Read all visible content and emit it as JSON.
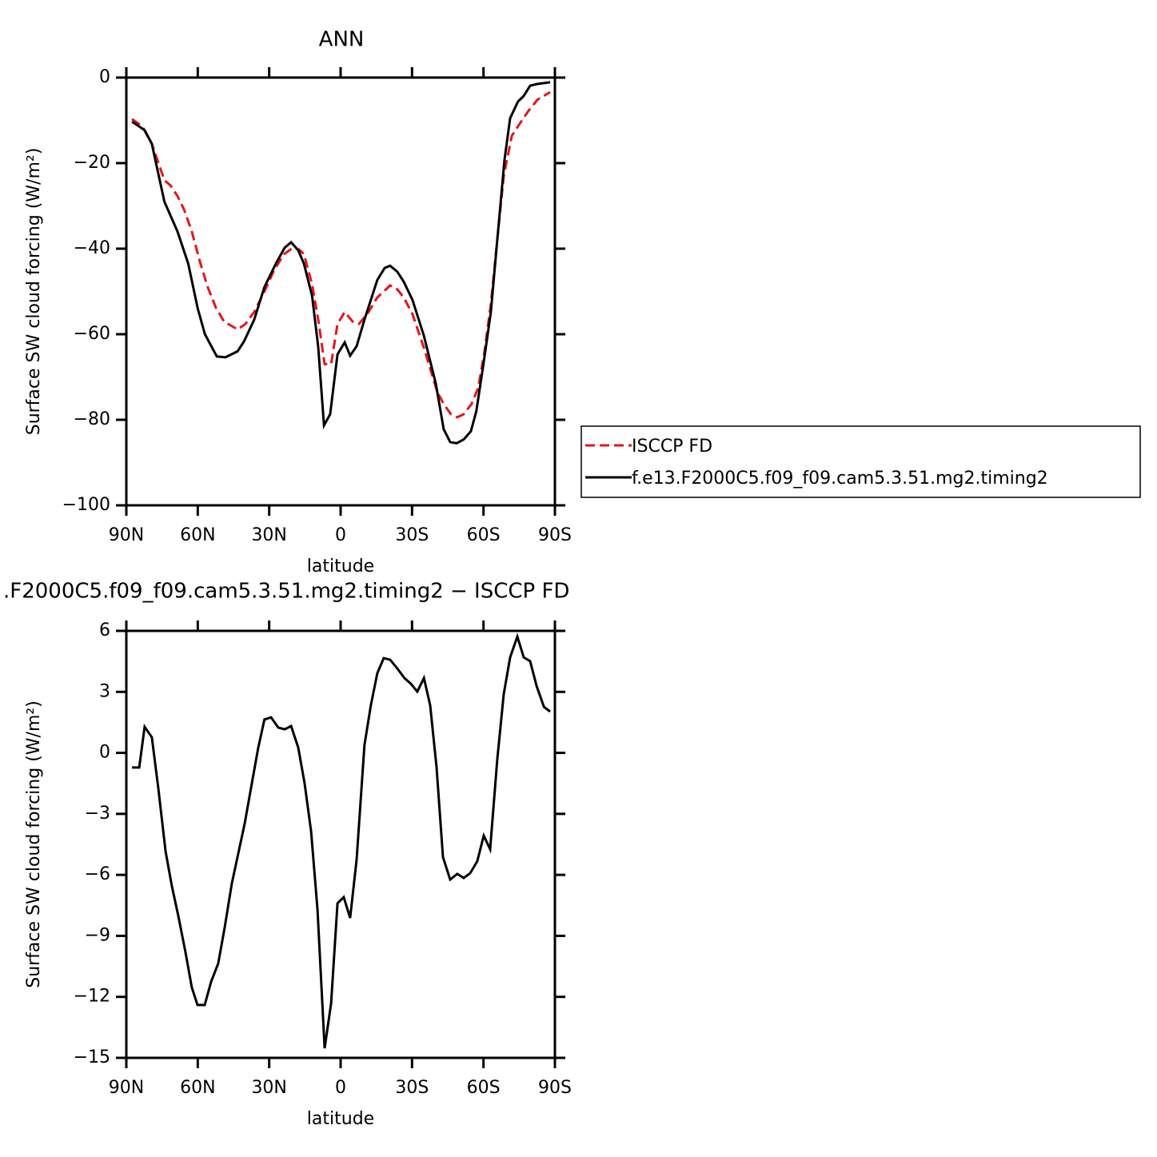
{
  "chart_data": [
    {
      "type": "line",
      "title": "ANN",
      "xlabel": "latitude",
      "ylabel": "Surface SW cloud forcing (W/m²)",
      "xlim": [
        90,
        -90
      ],
      "xticks": [
        {
          "value": 90,
          "label": "90N"
        },
        {
          "value": 60,
          "label": "60N"
        },
        {
          "value": 30,
          "label": "30N"
        },
        0,
        {
          "value": -30,
          "label": "30S"
        },
        {
          "value": -60,
          "label": "60S"
        },
        {
          "value": -90,
          "label": "90S"
        }
      ],
      "ylim": [
        -100,
        0
      ],
      "yticks": [
        {
          "value": -100,
          "label": "−100"
        },
        {
          "value": -80,
          "label": "−80"
        },
        {
          "value": -60,
          "label": "−60"
        },
        {
          "value": -40,
          "label": "−40"
        },
        {
          "value": -20,
          "label": "−20"
        },
        0
      ],
      "series": [
        {
          "name": "ISCCP FD",
          "color": "#e8141a",
          "dashed": true,
          "x": [
            87.6,
            83.3,
            79.3,
            74,
            71.5,
            68.5,
            65.8,
            62.5,
            59,
            55.8,
            52.4,
            49,
            43.3,
            40,
            36.3,
            32,
            27.9,
            23.8,
            20.1,
            17.4,
            15.4,
            12,
            9.4,
            6.7,
            4,
            1.3,
            -1.7,
            -5,
            -7.7,
            -11.4,
            -15.4,
            -20.8,
            -23.8,
            -26.5,
            -30.2,
            -35,
            -40.6,
            -43.3,
            -46.3,
            -49,
            -51.7,
            -55,
            -57.8,
            -60.4,
            -63.1,
            -65.8,
            -68.5,
            -71.9,
            -75.2,
            -78.6,
            -82.6,
            -88
          ],
          "values": [
            -9.7,
            -11.4,
            -15.5,
            -24,
            -25.2,
            -27.7,
            -30.8,
            -36,
            -43.2,
            -49,
            -53.8,
            -57,
            -58.9,
            -57.6,
            -54.8,
            -50,
            -45,
            -41.3,
            -39.8,
            -40.2,
            -41.3,
            -48.3,
            -56.6,
            -67,
            -67,
            -57.6,
            -54.8,
            -57,
            -57.6,
            -55.1,
            -51.4,
            -48.6,
            -49.5,
            -51.4,
            -55.3,
            -63.2,
            -73.5,
            -76.3,
            -78.7,
            -79.4,
            -78.7,
            -76.3,
            -72.5,
            -64.1,
            -52.9,
            -38,
            -23,
            -13.6,
            -10.8,
            -8,
            -5.2,
            -3.4
          ]
        },
        {
          "name": "f.e13.F2000C5.f09_f09.cam5.3.51.mg2.timing2",
          "color": "#000000",
          "dashed": false,
          "x": [
            87.6,
            82.3,
            79.3,
            74,
            68.5,
            64,
            60,
            57,
            52,
            48.4,
            43.3,
            40.6,
            36.3,
            32,
            27.2,
            23.5,
            20.8,
            17.8,
            15.4,
            12,
            9.4,
            7,
            4.4,
            1.3,
            -1.7,
            -4,
            -6.7,
            -10,
            -15.4,
            -18.5,
            -20.8,
            -23.8,
            -26.5,
            -30.2,
            -35,
            -40,
            -43.3,
            -46,
            -48.7,
            -51.7,
            -54.7,
            -57,
            -60,
            -63.1,
            -65.8,
            -68.8,
            -71.2,
            -74.5,
            -76.9,
            -79.6,
            -82.6,
            -88
          ],
          "values": [
            -10.3,
            -12.3,
            -15.5,
            -29,
            -36,
            -43.5,
            -54,
            -60,
            -65.2,
            -65.4,
            -64,
            -61.7,
            -56.6,
            -49,
            -43.5,
            -39.8,
            -38.5,
            -40.4,
            -43.5,
            -51,
            -63,
            -81.3,
            -78.7,
            -64.7,
            -61.9,
            -65,
            -62.8,
            -56.6,
            -47.3,
            -44.5,
            -44,
            -45.4,
            -47.7,
            -52,
            -60.4,
            -71.6,
            -82.2,
            -85.2,
            -85.5,
            -84.6,
            -82.7,
            -78,
            -66.9,
            -54.8,
            -38,
            -19.3,
            -9.5,
            -5.6,
            -4.3,
            -1.9,
            -1.5,
            -1.1
          ]
        }
      ]
    },
    {
      "type": "line",
      "title": ".F2000C5.f09_f09.cam5.3.51.mg2.timing2 − ISCCP FD",
      "xlabel": "latitude",
      "ylabel": "Surface SW cloud forcing (W/m²)",
      "xlim": [
        90,
        -90
      ],
      "xticks": [
        {
          "value": 90,
          "label": "90N"
        },
        {
          "value": 60,
          "label": "60N"
        },
        {
          "value": 30,
          "label": "30N"
        },
        0,
        {
          "value": -30,
          "label": "30S"
        },
        {
          "value": -60,
          "label": "60S"
        },
        {
          "value": -90,
          "label": "90S"
        }
      ],
      "ylim": [
        -15,
        6
      ],
      "yticks": [
        {
          "value": -15,
          "label": "−15"
        },
        {
          "value": -12,
          "label": "−12"
        },
        {
          "value": -9,
          "label": "−9"
        },
        {
          "value": -6,
          "label": "−6"
        },
        {
          "value": -3,
          "label": "−3"
        },
        0,
        3,
        6
      ],
      "series": [
        {
          "color": "#000000",
          "dashed": false,
          "x": [
            87.6,
            84.6,
            82.3,
            79.3,
            76.6,
            73.5,
            70.9,
            68.2,
            65.2,
            62.5,
            60.1,
            57.1,
            54.4,
            51.4,
            48.7,
            45.7,
            40.3,
            37.6,
            34.6,
            32,
            29.2,
            26.2,
            23.5,
            20.8,
            17.8,
            15.1,
            12.4,
            9.7,
            6.7,
            4,
            1.3,
            -1.3,
            -4,
            -6.7,
            -10,
            -12.7,
            -15.4,
            -18.1,
            -20.8,
            -23.8,
            -26.8,
            -29.5,
            -32.2,
            -35,
            -37.6,
            -40.3,
            -43,
            -46,
            -49,
            -51.7,
            -54.4,
            -57.4,
            -60.1,
            -62.8,
            -65.8,
            -68.5,
            -71.2,
            -74.2,
            -76.9,
            -79.6,
            -82.3,
            -85.4,
            -88
          ],
          "values": [
            -0.72,
            -0.72,
            1.28,
            0.77,
            -1.71,
            -4.85,
            -6.54,
            -8.0,
            -9.77,
            -11.54,
            -12.4,
            -12.4,
            -11.26,
            -10.36,
            -8.59,
            -6.43,
            -3.48,
            -1.71,
            0.26,
            1.64,
            1.75,
            1.24,
            1.16,
            1.32,
            0.26,
            -1.51,
            -3.87,
            -7.72,
            -14.53,
            -12.32,
            -7.4,
            -7.1,
            -8.12,
            -5.25,
            0.38,
            2.34,
            3.92,
            4.66,
            4.58,
            4.15,
            3.68,
            3.4,
            3.01,
            3.68,
            2.34,
            -0.72,
            -5.13,
            -6.23,
            -5.95,
            -6.15,
            -5.92,
            -5.33,
            -4.07,
            -4.74,
            -0.33,
            2.89,
            4.7,
            5.72,
            4.7,
            4.51,
            3.29,
            2.26,
            2.03
          ]
        }
      ]
    }
  ]
}
